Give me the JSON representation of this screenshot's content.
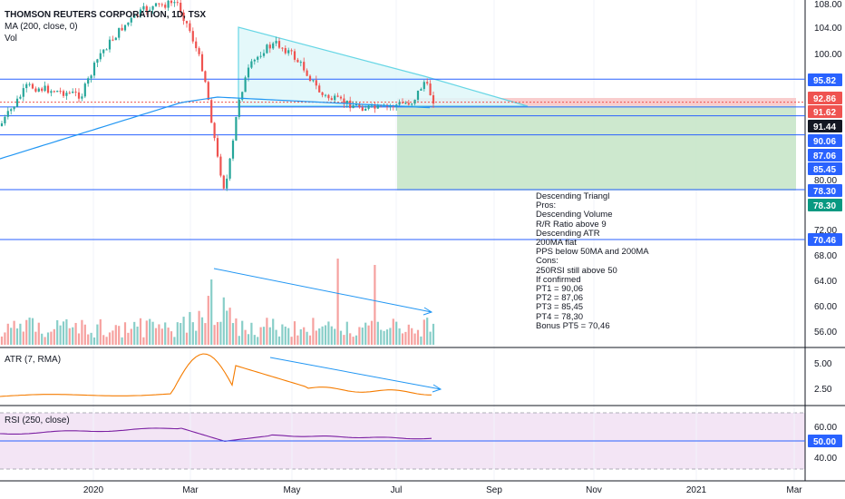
{
  "main_legend": {
    "title": "THOMSON REUTERS CORPORATION, 1D, TSX",
    "ma": "MA (200, close, 0)",
    "vol": "Vol"
  },
  "atr_legend": "ATR (7, RMA)",
  "rsi_legend": "RSI (250, close)",
  "notes": [
    "Descending Triangl",
    "Pros:",
    "Descending Volume",
    "R/R Ratio above 9",
    "Descending ATR",
    "200MA flat",
    "PPS below 50MA and 200MA",
    "Cons:",
    "250RSI still above 50",
    "If confirmed",
    "PT1 = 90,06",
    "PT2 = 87,06",
    "PT3 = 85,45",
    "PT4 = 78,30",
    "Bonus PT5 = 70,46"
  ],
  "colors": {
    "up": "#26a69a",
    "down": "#ef5350",
    "ma": "#2196f3",
    "hline": "#2962ff",
    "triangle": "#4dd0e1",
    "atr": "#f57c00",
    "rsi": "#7b1fa2",
    "rsi_bg": "#f3e5f5",
    "target_zone": "#c8e6c9",
    "stop_zone": "#f8c8c8"
  },
  "chart_data": {
    "type": "candlestick",
    "x_labels": [
      "2020",
      "Mar",
      "May",
      "Jul",
      "Sep",
      "Nov",
      "2021",
      "Mar"
    ],
    "price_ticks": [
      108.0,
      104.0,
      100.0,
      80.0,
      72.0,
      68.0,
      64.0,
      60.0,
      56.0
    ],
    "price_tags": [
      {
        "value": "95.82",
        "color": "#2962ff"
      },
      {
        "value": "92.86",
        "color": "#ef5350"
      },
      {
        "value": "91.62",
        "color": "#ef5350"
      },
      {
        "value": "91.44",
        "color": "#131722"
      },
      {
        "value": "90.06",
        "color": "#2962ff"
      },
      {
        "value": "87.06",
        "color": "#2962ff"
      },
      {
        "value": "85.45",
        "color": "#2962ff"
      },
      {
        "value": "78.30",
        "color": "#2962ff"
      },
      {
        "value": "78.30",
        "color": "#089981"
      },
      {
        "value": "70.46",
        "color": "#2962ff"
      }
    ],
    "horizontal_levels": [
      95.82,
      91.44,
      90.06,
      87.06,
      78.3,
      70.46
    ],
    "triangle": {
      "apex_price": 104.2,
      "base_price": 91.6,
      "end_price": 91.6
    },
    "position": {
      "entry": 91.62,
      "stop": 92.86,
      "target": 78.3
    },
    "atr_ticks": [
      5.0,
      2.5
    ],
    "rsi_ticks": [
      60.0,
      50.0,
      40.0
    ],
    "rsi_tag": "50.00"
  }
}
